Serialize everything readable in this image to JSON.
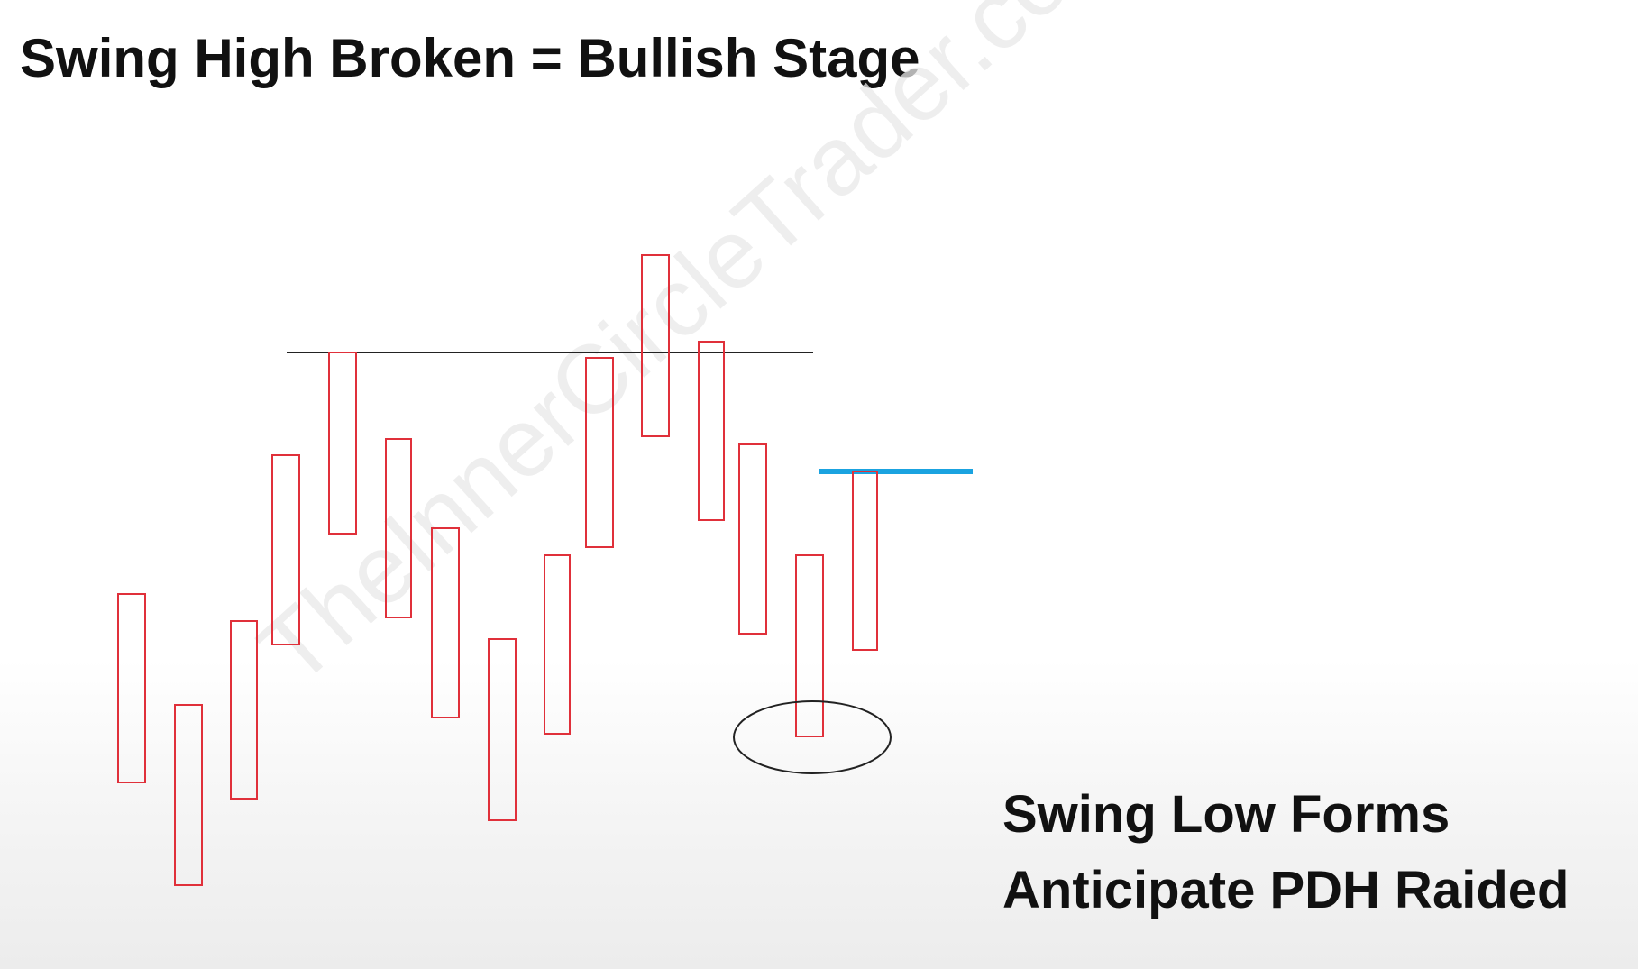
{
  "title": "Swing High Broken = Bullish Stage",
  "caption": {
    "line1": "Swing Low Forms",
    "line2": "Anticipate PDH Raided"
  },
  "watermark": "TheInnerCircleTrader.com",
  "colors": {
    "candle_stroke": "#e0303a",
    "swing_high_line": "#222222",
    "pdh_line": "#1aa3e0",
    "ellipse_stroke": "#222222",
    "text": "#111111"
  }
}
